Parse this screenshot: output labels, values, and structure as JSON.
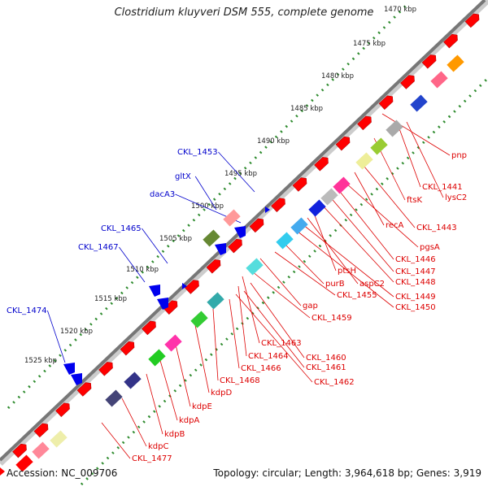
{
  "title": "Clostridium kluyveri DSM 555, complete genome",
  "footer": {
    "accession": "Accession: NC_009706",
    "topology": "Topology: circular; Length: 3,964,618 bp; Genes: 3,919"
  },
  "kbp_ticks": [
    "1470 kbp",
    "1475 kbp",
    "1480 kbp",
    "1485 kbp",
    "1490 kbp",
    "1495 kbp",
    "1500 kbp",
    "1505 kbp",
    "1510 kbp",
    "1515 kbp",
    "1520 kbp",
    "1525 kbp"
  ],
  "colors": {
    "forward": "#ff0000",
    "label_forward": "#0000cc",
    "label_reverse": "#dd0000",
    "backbone": "#888888",
    "gc_outer": "#2e8b2e",
    "gc_inner": "#2e8b2e"
  },
  "labels_blue": [
    "CKL_1453",
    "gltX",
    "dacA3",
    "CKL_1465",
    "CKL_1467",
    "CKL_1474"
  ],
  "labels_red": [
    "pnp",
    "CKL_1441",
    "lysC2",
    "ftsK",
    "CKL_1443",
    "recA",
    "pgsA",
    "CKL_1446",
    "CKL_1447",
    "CKL_1448",
    "ptsH",
    "aspC2",
    "CKL_1449",
    "CKL_1450",
    "purB",
    "CKL_1455",
    "gap",
    "CKL_1459",
    "CKL_1463",
    "CKL_1460",
    "CKL_1464",
    "CKL_1461",
    "CKL_1466",
    "CKL_1462",
    "CKL_1468",
    "kdpD",
    "kdpE",
    "kdpA",
    "kdpB",
    "kdpC",
    "CKL_1477"
  ]
}
